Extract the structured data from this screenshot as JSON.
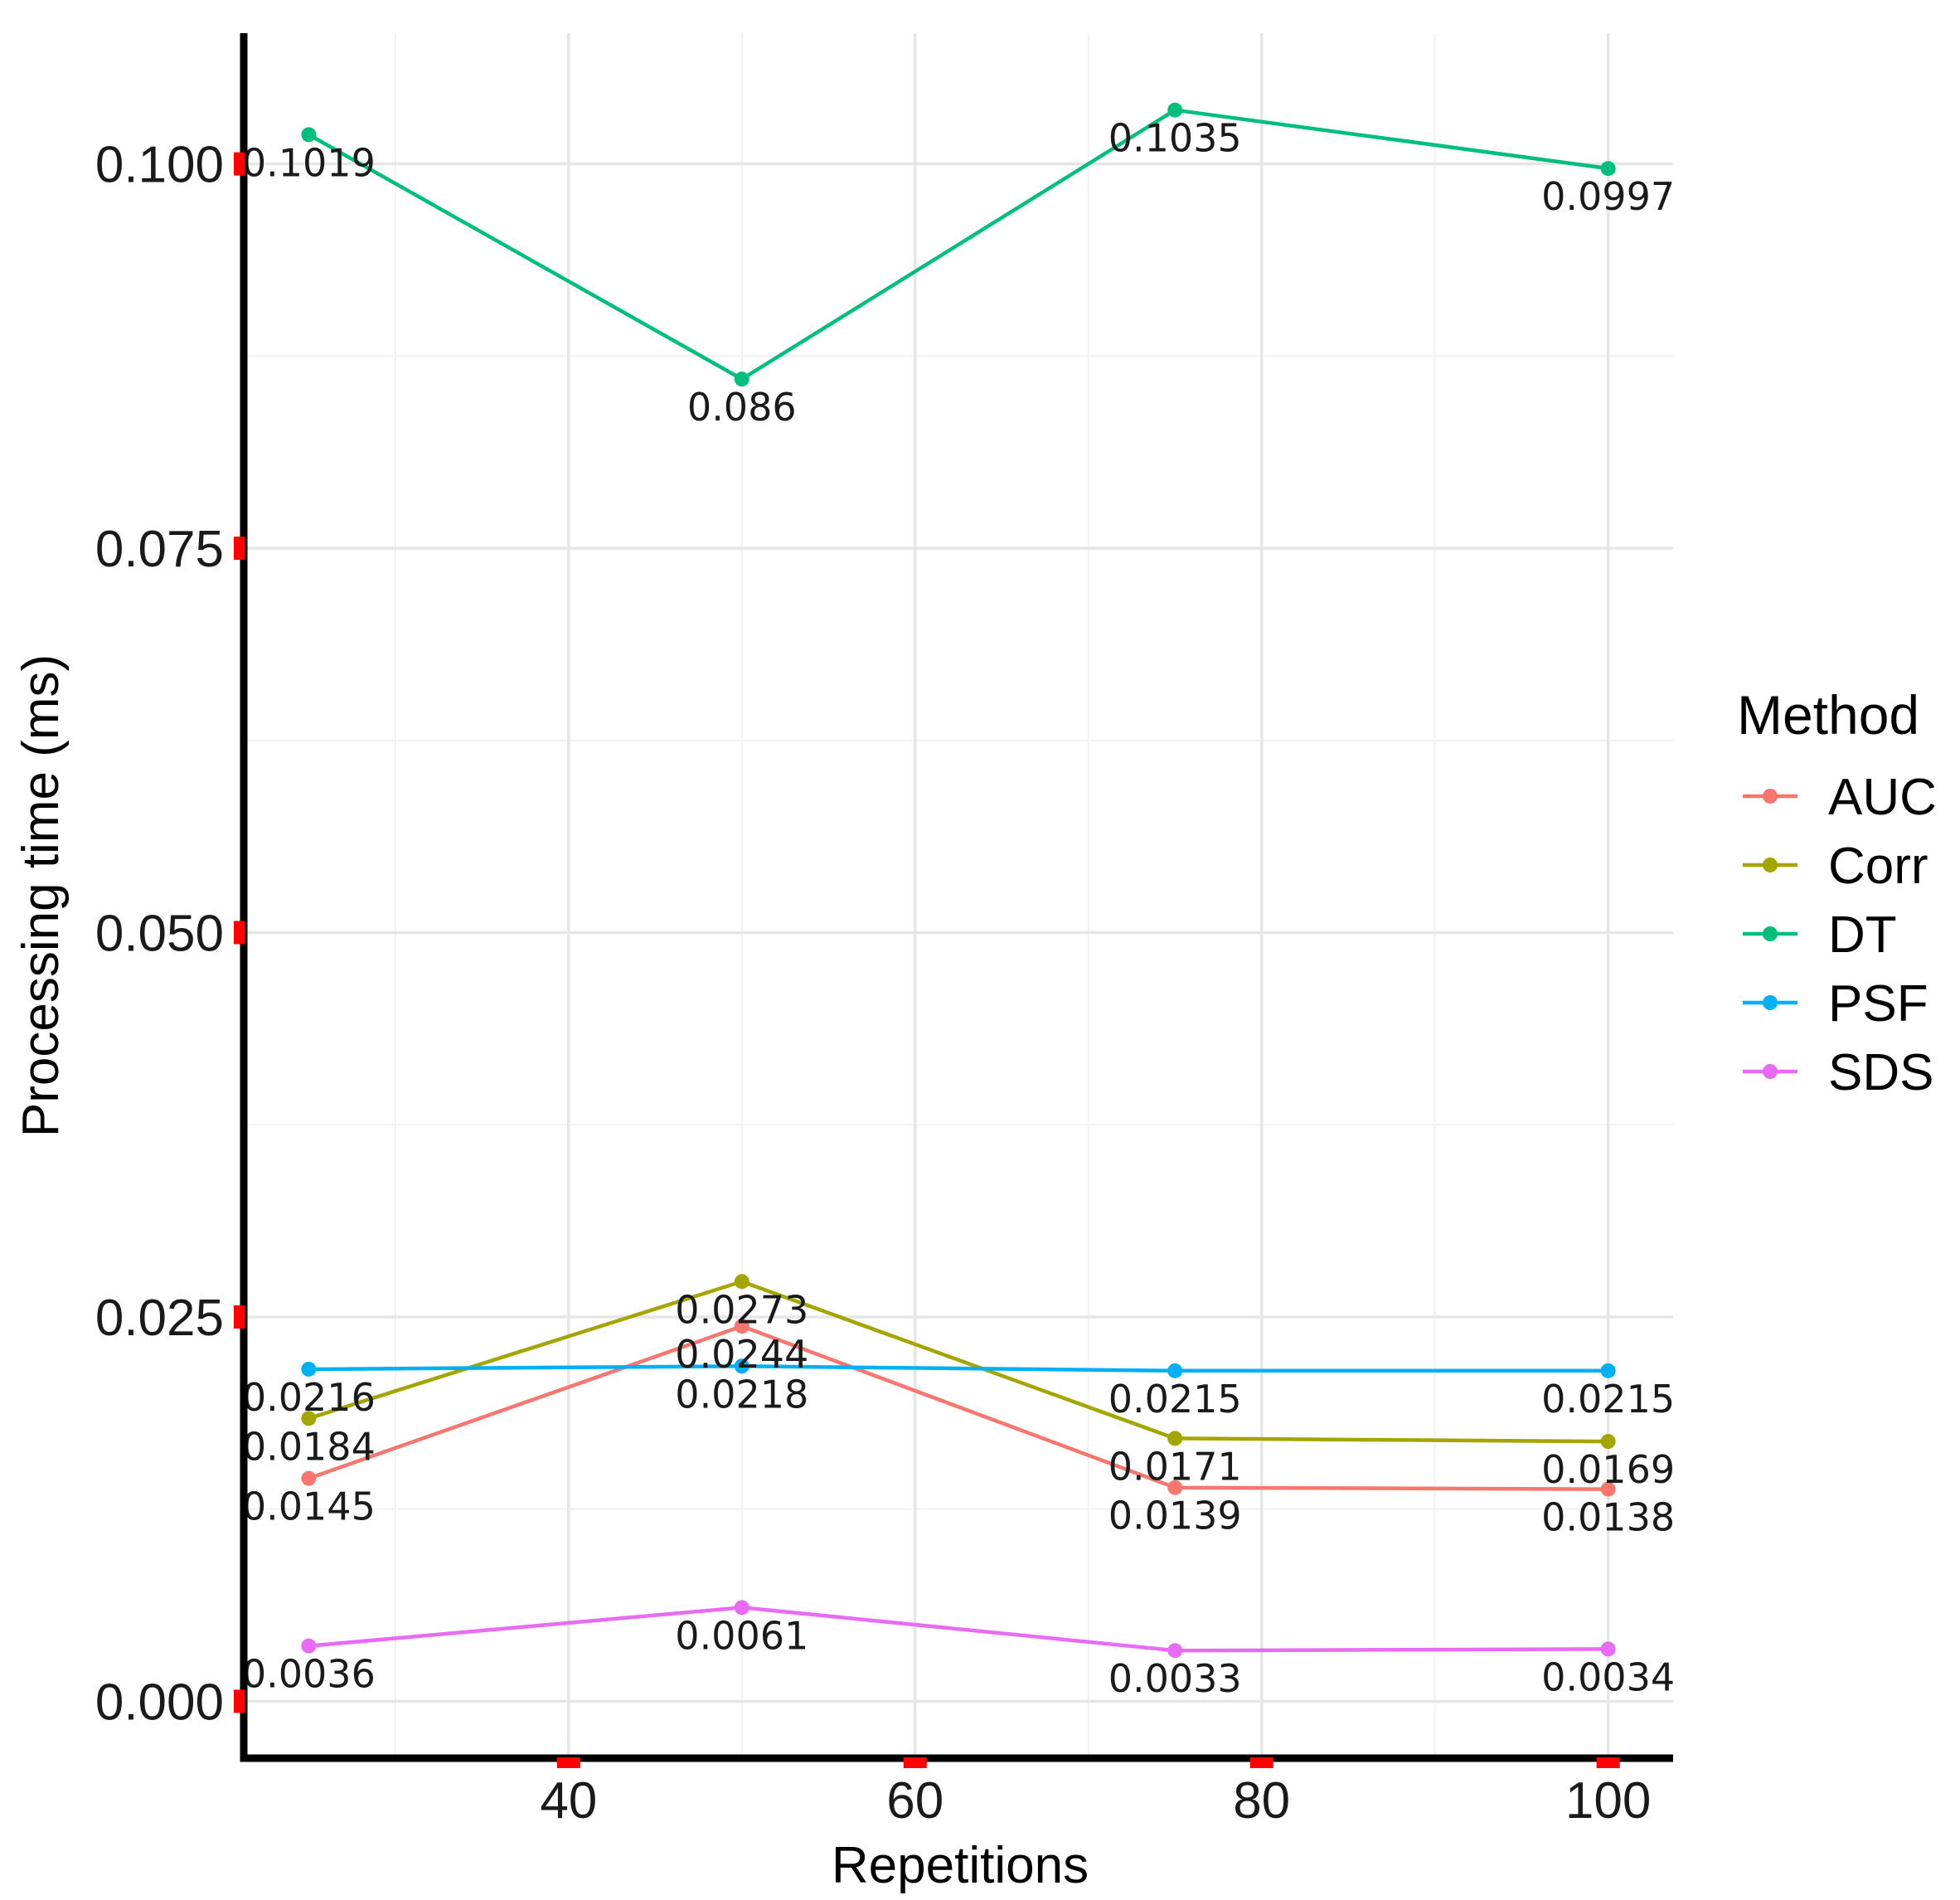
{
  "chart_data": {
    "type": "line",
    "title": "",
    "xlabel": "Repetitions",
    "ylabel": "Processing time (ms)",
    "x": [
      25,
      50,
      75,
      100
    ],
    "xlim": [
      21.25,
      103.75
    ],
    "ylim": [
      -0.0037,
      0.1085
    ],
    "xticks": [
      40,
      60,
      80,
      100
    ],
    "xtick_labels": [
      "40",
      "60",
      "80",
      "100"
    ],
    "yticks": [
      0.0,
      0.025,
      0.05,
      0.075,
      0.1
    ],
    "ytick_labels": [
      "0.000",
      "0.025",
      "0.050",
      "0.075",
      "0.100"
    ],
    "x_minor_gridlines": [
      30,
      50,
      70,
      90
    ],
    "y_minor_gridlines": [
      0.0125,
      0.0375,
      0.0625,
      0.0875
    ],
    "grid": true,
    "legend": {
      "title": "Method",
      "position": "right"
    },
    "series": [
      {
        "name": "AUC",
        "color": "#F8766D",
        "values": [
          0.0145,
          0.0244,
          0.0139,
          0.0138
        ],
        "labels": [
          "0.0145",
          "0.0244",
          "0.0139",
          "0.0138"
        ]
      },
      {
        "name": "Corr",
        "color": "#A3A500",
        "values": [
          0.0184,
          0.0273,
          0.0171,
          0.0169
        ],
        "labels": [
          "0.0184",
          "0.0273",
          "0.0171",
          "0.0169"
        ]
      },
      {
        "name": "DT",
        "color": "#00BF7D",
        "values": [
          0.1019,
          0.086,
          0.1035,
          0.0997
        ],
        "labels": [
          "0.1019",
          "0.086",
          "0.1035",
          "0.0997"
        ]
      },
      {
        "name": "PSF",
        "color": "#00B0F6",
        "values": [
          0.0216,
          0.0218,
          0.0215,
          0.0215
        ],
        "labels": [
          "0.0216",
          "0.0218",
          "0.0215",
          "0.0215"
        ]
      },
      {
        "name": "SDS",
        "color": "#E76BF3",
        "values": [
          0.0036,
          0.0061,
          0.0033,
          0.0034
        ],
        "labels": [
          "0.0036",
          "0.0061",
          "0.0033",
          "0.0034"
        ]
      }
    ]
  }
}
